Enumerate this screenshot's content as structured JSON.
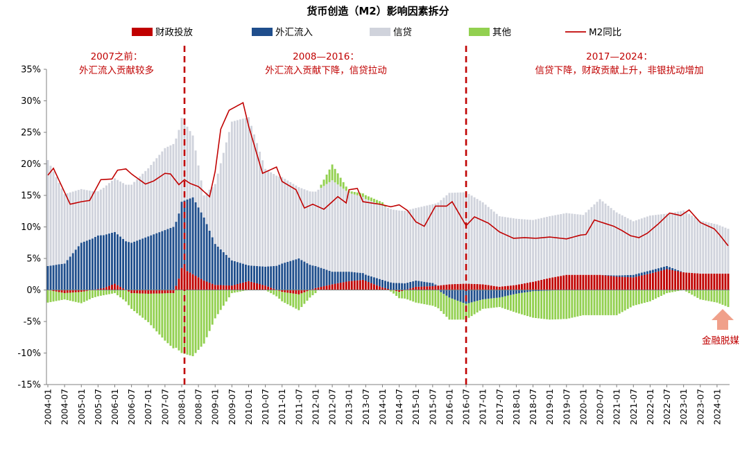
{
  "chart_data": {
    "type": "bar",
    "title": "货币创造（M2）影响因素拆分",
    "stacked": true,
    "y_unit": "%",
    "ylim": [
      -15,
      35
    ],
    "ytick_labels": [
      "35%",
      "30%",
      "25%",
      "20%",
      "15%",
      "10%",
      "5%",
      "0%",
      "-5%",
      "-10%",
      "-15%"
    ],
    "x_tick_labels": [
      "2004-01",
      "2004-07",
      "2005-01",
      "2005-07",
      "2006-01",
      "2006-07",
      "2007-01",
      "2007-07",
      "2008-01",
      "2008-07",
      "2009-01",
      "2009-07",
      "2010-01",
      "2010-07",
      "2011-01",
      "2011-07",
      "2012-01",
      "2012-07",
      "2013-01",
      "2013-07",
      "2014-01",
      "2014-07",
      "2015-01",
      "2015-07",
      "2016-01",
      "2016-07",
      "2017-01",
      "2017-07",
      "2018-01",
      "2018-07",
      "2019-01",
      "2019-07",
      "2020-01",
      "2020-07",
      "2021-01",
      "2021-07",
      "2022-01",
      "2022-07",
      "2023-01",
      "2023-07",
      "2024-01"
    ],
    "legend": [
      {
        "name": "财政投放",
        "color": "#c00000",
        "kind": "bar"
      },
      {
        "name": "外汇流入",
        "color": "#1f4e8c",
        "kind": "bar"
      },
      {
        "name": "信贷",
        "color": "#d0d3dc",
        "kind": "bar"
      },
      {
        "name": "其他",
        "color": "#92d050",
        "kind": "bar"
      },
      {
        "name": "M2同比",
        "color": "#c00000",
        "kind": "line"
      }
    ],
    "period": {
      "start": "2004-01",
      "end": "2024-05",
      "frequency": "monthly"
    },
    "monthly_keyframes": {
      "fiscal": [
        [
          "2004-01",
          0
        ],
        [
          "2004-07",
          -0.5
        ],
        [
          "2005-01",
          -0.3
        ],
        [
          "2005-09",
          0.3
        ],
        [
          "2006-01",
          1
        ],
        [
          "2006-07",
          -0.5
        ],
        [
          "2007-01",
          -0.6
        ],
        [
          "2007-10",
          -0.5
        ],
        [
          "2007-12",
          1.8
        ],
        [
          "2008-01",
          3.5
        ],
        [
          "2008-05",
          2.5
        ],
        [
          "2008-09",
          1.5
        ],
        [
          "2009-01",
          0.8
        ],
        [
          "2009-07",
          0.7
        ],
        [
          "2010-01",
          1.4
        ],
        [
          "2010-07",
          0.7
        ],
        [
          "2011-01",
          -0.3
        ],
        [
          "2011-07",
          -0.7
        ],
        [
          "2012-01",
          0.3
        ],
        [
          "2012-07",
          0.9
        ],
        [
          "2013-01",
          1.4
        ],
        [
          "2013-06",
          1.6
        ],
        [
          "2014-01",
          0.4
        ],
        [
          "2014-07",
          -0.3
        ],
        [
          "2015-01",
          0.5
        ],
        [
          "2015-07",
          0.6
        ],
        [
          "2016-01",
          0.9
        ],
        [
          "2016-07",
          1.0
        ],
        [
          "2017-01",
          0.9
        ],
        [
          "2017-07",
          0.5
        ],
        [
          "2018-01",
          0.8
        ],
        [
          "2018-07",
          1.3
        ],
        [
          "2019-01",
          1.9
        ],
        [
          "2019-07",
          2.4
        ],
        [
          "2020-01",
          2.4
        ],
        [
          "2020-07",
          2.4
        ],
        [
          "2021-01",
          2.1
        ],
        [
          "2021-07",
          2.0
        ],
        [
          "2022-01",
          2.6
        ],
        [
          "2022-07",
          3.3
        ],
        [
          "2023-01",
          2.8
        ],
        [
          "2023-07",
          2.6
        ],
        [
          "2024-01",
          2.6
        ],
        [
          "2024-05",
          2.6
        ]
      ],
      "fx": [
        [
          "2004-01",
          3.8
        ],
        [
          "2004-07",
          4.2
        ],
        [
          "2005-01",
          7.5
        ],
        [
          "2005-07",
          8.5
        ],
        [
          "2006-01",
          8.2
        ],
        [
          "2006-07",
          7.5
        ],
        [
          "2007-01",
          8.5
        ],
        [
          "2007-07",
          9.5
        ],
        [
          "2008-01",
          10.5
        ],
        [
          "2008-05",
          12.2
        ],
        [
          "2008-09",
          10.0
        ],
        [
          "2009-01",
          6.5
        ],
        [
          "2009-07",
          4.0
        ],
        [
          "2010-01",
          2.5
        ],
        [
          "2010-07",
          3.0
        ],
        [
          "2011-01",
          4.2
        ],
        [
          "2011-07",
          5.0
        ],
        [
          "2012-01",
          3.5
        ],
        [
          "2012-07",
          2.0
        ],
        [
          "2013-01",
          1.5
        ],
        [
          "2013-07",
          1.0
        ],
        [
          "2014-01",
          1.2
        ],
        [
          "2014-07",
          1.1
        ],
        [
          "2015-01",
          1.0
        ],
        [
          "2015-07",
          0.5
        ],
        [
          "2016-01",
          -1.2
        ],
        [
          "2016-07",
          -2.2
        ],
        [
          "2017-01",
          -1.5
        ],
        [
          "2017-07",
          -1.2
        ],
        [
          "2018-01",
          -0.6
        ],
        [
          "2018-07",
          -0.2
        ],
        [
          "2019-01",
          -0.1
        ],
        [
          "2019-07",
          0
        ],
        [
          "2020-01",
          0
        ],
        [
          "2020-07",
          0
        ],
        [
          "2021-01",
          0.2
        ],
        [
          "2021-07",
          0.4
        ],
        [
          "2022-01",
          0.5
        ],
        [
          "2022-07",
          0.5
        ],
        [
          "2023-01",
          0
        ],
        [
          "2023-07",
          0
        ],
        [
          "2024-01",
          0
        ],
        [
          "2024-05",
          0
        ]
      ],
      "credit": [
        [
          "2004-01",
          16.8
        ],
        [
          "2004-07",
          11.0
        ],
        [
          "2005-01",
          8.5
        ],
        [
          "2005-07",
          7.0
        ],
        [
          "2006-01",
          8.5
        ],
        [
          "2006-07",
          9.2
        ],
        [
          "2007-01",
          10.8
        ],
        [
          "2007-07",
          13.0
        ],
        [
          "2008-01",
          13.3
        ],
        [
          "2008-05",
          9.8
        ],
        [
          "2008-09",
          3.5
        ],
        [
          "2009-01",
          9.5
        ],
        [
          "2009-07",
          22.0
        ],
        [
          "2010-01",
          23.5
        ],
        [
          "2010-07",
          15.5
        ],
        [
          "2011-01",
          13.7
        ],
        [
          "2011-07",
          11.3
        ],
        [
          "2012-01",
          11.8
        ],
        [
          "2012-07",
          14.5
        ],
        [
          "2013-01",
          12.5
        ],
        [
          "2013-07",
          12.0
        ],
        [
          "2014-01",
          11.8
        ],
        [
          "2014-07",
          11.5
        ],
        [
          "2015-01",
          11.5
        ],
        [
          "2015-07",
          12.5
        ],
        [
          "2016-01",
          14.5
        ],
        [
          "2016-07",
          14.5
        ],
        [
          "2017-01",
          13.0
        ],
        [
          "2017-07",
          11.2
        ],
        [
          "2018-01",
          10.5
        ],
        [
          "2018-07",
          9.8
        ],
        [
          "2019-01",
          9.8
        ],
        [
          "2019-07",
          9.8
        ],
        [
          "2020-01",
          9.5
        ],
        [
          "2020-07",
          12.0
        ],
        [
          "2021-01",
          10.0
        ],
        [
          "2021-07",
          8.5
        ],
        [
          "2022-01",
          8.7
        ],
        [
          "2022-07",
          8.3
        ],
        [
          "2023-01",
          9.8
        ],
        [
          "2023-07",
          8.4
        ],
        [
          "2024-01",
          7.8
        ],
        [
          "2024-05",
          7.1
        ]
      ],
      "other": [
        [
          "2004-01",
          -2.0
        ],
        [
          "2004-07",
          -1.0
        ],
        [
          "2005-01",
          -1.8
        ],
        [
          "2005-07",
          -1.0
        ],
        [
          "2006-01",
          -0.5
        ],
        [
          "2006-07",
          -2.5
        ],
        [
          "2007-01",
          -4.5
        ],
        [
          "2007-07",
          -7.5
        ],
        [
          "2008-01",
          -10.0
        ],
        [
          "2008-05",
          -10.5
        ],
        [
          "2008-09",
          -8.5
        ],
        [
          "2009-01",
          -4.5
        ],
        [
          "2009-07",
          -0.5
        ],
        [
          "2010-01",
          0
        ],
        [
          "2010-07",
          0
        ],
        [
          "2011-01",
          -1.5
        ],
        [
          "2011-07",
          -2.5
        ],
        [
          "2012-01",
          -0.5
        ],
        [
          "2012-07",
          2.5
        ],
        [
          "2013-01",
          0.3
        ],
        [
          "2013-07",
          0.6
        ],
        [
          "2014-01",
          0.5
        ],
        [
          "2014-07",
          -1.0
        ],
        [
          "2015-01",
          -2.0
        ],
        [
          "2015-07",
          -2.5
        ],
        [
          "2016-01",
          -3.5
        ],
        [
          "2016-07",
          -2.5
        ],
        [
          "2017-01",
          -1.5
        ],
        [
          "2017-07",
          -1.5
        ],
        [
          "2018-01",
          -3.0
        ],
        [
          "2018-07",
          -4.2
        ],
        [
          "2019-01",
          -4.6
        ],
        [
          "2019-07",
          -4.6
        ],
        [
          "2020-01",
          -4.0
        ],
        [
          "2020-07",
          -4.0
        ],
        [
          "2021-01",
          -4.0
        ],
        [
          "2021-07",
          -2.5
        ],
        [
          "2022-01",
          -1.8
        ],
        [
          "2022-07",
          -0.5
        ],
        [
          "2023-01",
          0
        ],
        [
          "2023-07",
          -1.5
        ],
        [
          "2024-01",
          -2.0
        ],
        [
          "2024-05",
          -2.7
        ]
      ],
      "m2": [
        [
          "2004-01",
          18.2
        ],
        [
          "2004-03",
          19.3
        ],
        [
          "2004-07",
          15.5
        ],
        [
          "2004-09",
          13.6
        ],
        [
          "2005-01",
          14.0
        ],
        [
          "2005-04",
          14.2
        ],
        [
          "2005-08",
          17.5
        ],
        [
          "2005-12",
          17.6
        ],
        [
          "2006-02",
          19.0
        ],
        [
          "2006-05",
          19.2
        ],
        [
          "2006-07",
          18.4
        ],
        [
          "2006-12",
          16.8
        ],
        [
          "2007-03",
          17.3
        ],
        [
          "2007-07",
          18.5
        ],
        [
          "2007-09",
          18.4
        ],
        [
          "2007-12",
          16.7
        ],
        [
          "2008-02",
          17.5
        ],
        [
          "2008-04",
          16.9
        ],
        [
          "2008-07",
          16.4
        ],
        [
          "2008-11",
          14.8
        ],
        [
          "2009-01",
          18.8
        ],
        [
          "2009-03",
          25.5
        ],
        [
          "2009-06",
          28.5
        ],
        [
          "2009-11",
          29.7
        ],
        [
          "2010-01",
          26.0
        ],
        [
          "2010-06",
          18.5
        ],
        [
          "2010-11",
          19.5
        ],
        [
          "2011-01",
          17.2
        ],
        [
          "2011-06",
          15.9
        ],
        [
          "2011-09",
          13.0
        ],
        [
          "2011-12",
          13.6
        ],
        [
          "2012-04",
          12.8
        ],
        [
          "2012-09",
          14.8
        ],
        [
          "2012-12",
          13.8
        ],
        [
          "2013-01",
          15.9
        ],
        [
          "2013-04",
          16.1
        ],
        [
          "2013-06",
          14.0
        ],
        [
          "2013-12",
          13.6
        ],
        [
          "2014-04",
          13.2
        ],
        [
          "2014-07",
          13.5
        ],
        [
          "2014-10",
          12.6
        ],
        [
          "2015-01",
          10.8
        ],
        [
          "2015-04",
          10.1
        ],
        [
          "2015-08",
          13.3
        ],
        [
          "2015-12",
          13.3
        ],
        [
          "2016-02",
          14.0
        ],
        [
          "2016-07",
          10.2
        ],
        [
          "2016-10",
          11.6
        ],
        [
          "2017-03",
          10.6
        ],
        [
          "2017-07",
          9.2
        ],
        [
          "2017-12",
          8.2
        ],
        [
          "2018-04",
          8.3
        ],
        [
          "2018-08",
          8.2
        ],
        [
          "2019-01",
          8.4
        ],
        [
          "2019-07",
          8.1
        ],
        [
          "2019-12",
          8.7
        ],
        [
          "2020-02",
          8.8
        ],
        [
          "2020-05",
          11.1
        ],
        [
          "2020-12",
          10.1
        ],
        [
          "2021-03",
          9.4
        ],
        [
          "2021-06",
          8.6
        ],
        [
          "2021-09",
          8.3
        ],
        [
          "2021-12",
          9.0
        ],
        [
          "2022-04",
          10.5
        ],
        [
          "2022-08",
          12.2
        ],
        [
          "2022-12",
          11.8
        ],
        [
          "2023-03",
          12.7
        ],
        [
          "2023-07",
          10.7
        ],
        [
          "2023-12",
          9.7
        ],
        [
          "2024-02",
          8.7
        ],
        [
          "2024-05",
          7.0
        ]
      ]
    },
    "annotations": [
      {
        "text_lines": [
          "2007之前：",
          "外汇流入贡献较多"
        ]
      },
      {
        "text_lines": [
          "2008—2016：",
          "外汇流入贡献下降，信贷拉动"
        ]
      },
      {
        "text_lines": [
          "2017—2024：",
          "信贷下降，财政贡献上升，非银扰动增加"
        ]
      },
      {
        "text_lines": [
          "金融脱媒"
        ]
      }
    ],
    "divider_dates": [
      "2008-02",
      "2016-07"
    ],
    "grid": false,
    "legend_position": "top"
  }
}
